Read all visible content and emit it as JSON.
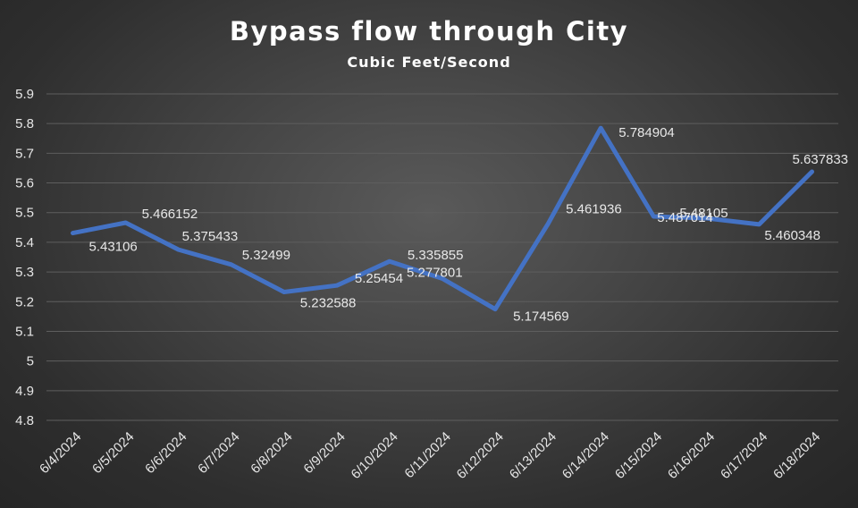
{
  "chart_data": {
    "type": "line",
    "title": "Bypass flow through City",
    "subtitle": "Cubic Feet/Second",
    "xlabel": "",
    "ylabel": "",
    "categories": [
      "6/4/2024",
      "6/5/2024",
      "6/6/2024",
      "6/7/2024",
      "6/8/2024",
      "6/9/2024",
      "6/10/2024",
      "6/11/2024",
      "6/12/2024",
      "6/13/2024",
      "6/14/2024",
      "6/15/2024",
      "6/16/2024",
      "6/17/2024",
      "6/18/2024"
    ],
    "series": [
      {
        "values": [
          5.43106,
          5.466152,
          5.375433,
          5.32499,
          5.232588,
          5.25454,
          5.335855,
          5.277801,
          5.174569,
          5.461936,
          5.784904,
          5.487014,
          5.48105,
          5.460348,
          5.637833
        ],
        "data_labels": [
          "5.43106",
          "5.466152",
          "5.375433",
          "5.32499",
          "5.232588",
          "5.25454",
          "5.335855",
          "5.277801",
          "5.174569",
          "5.461936",
          "5.784904",
          "5.487014",
          "5.48105",
          "5.460348",
          "5.637833"
        ]
      }
    ],
    "ylim": [
      4.8,
      5.9
    ],
    "yticks": [
      "5.9",
      "5.8",
      "5.7",
      "5.6",
      "5.5",
      "5.4",
      "5.3",
      "5.2",
      "5.1",
      "5",
      "4.9",
      "4.8"
    ],
    "grid": true,
    "legend": "none",
    "colors": {
      "line": "#4472c4",
      "gridline": "#5e5e5e",
      "text": "#e6e6e6"
    }
  }
}
